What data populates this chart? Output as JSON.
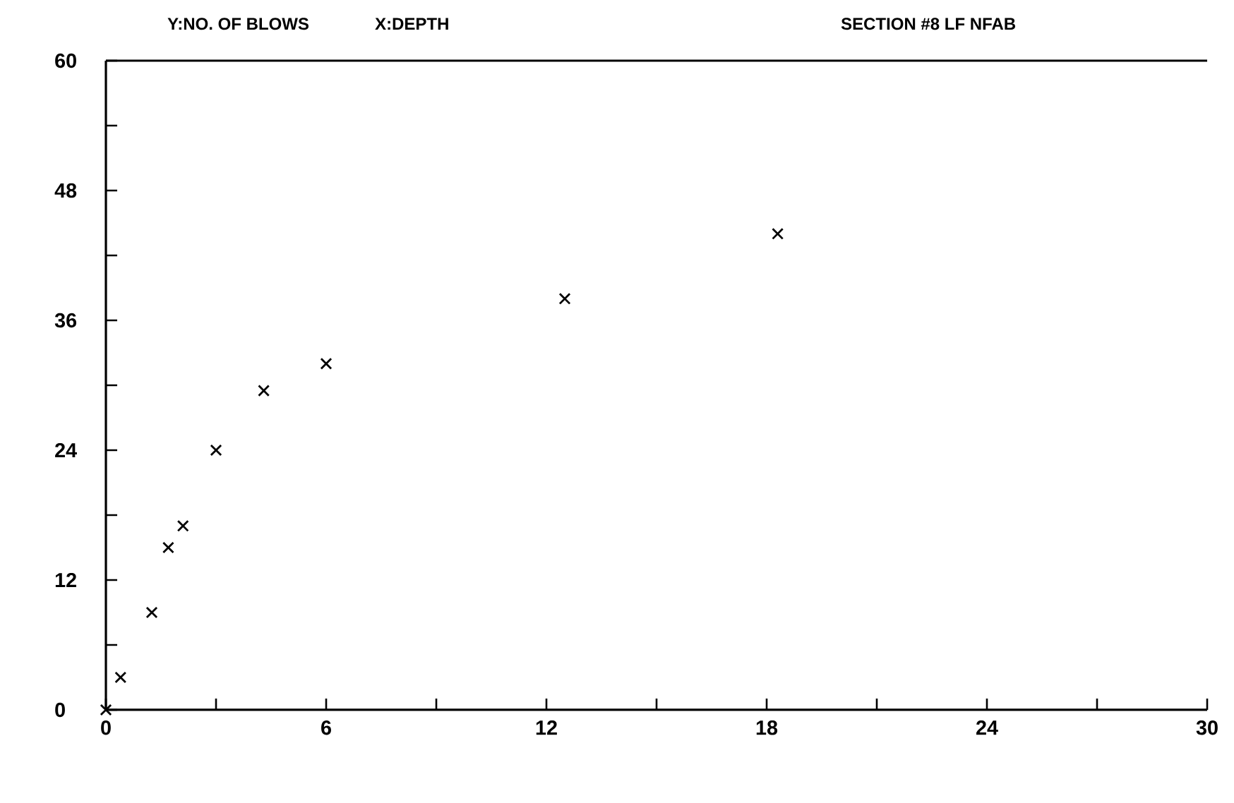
{
  "chart_data": {
    "type": "scatter",
    "title": "SECTION #8 LF NFAB",
    "xlabel": "X:DEPTH",
    "ylabel": "Y:NO. OF BLOWS",
    "x": [
      0,
      0.4,
      1.25,
      1.7,
      2.1,
      3,
      4.3,
      6,
      12.5,
      18.3
    ],
    "series": [
      {
        "color": "#000000",
        "values": [
          0,
          3,
          9,
          15,
          17,
          24,
          29.5,
          32,
          38,
          44
        ]
      }
    ],
    "marker": "cross",
    "xlim": [
      0,
      30
    ],
    "ylim": [
      0,
      60
    ],
    "xticks": [
      0,
      {
        "value": 3,
        "label": null
      },
      6,
      {
        "value": 9,
        "label": null
      },
      12,
      {
        "value": 15,
        "label": null
      },
      18,
      {
        "value": 21,
        "label": null
      },
      24,
      {
        "value": 27,
        "label": null
      },
      30
    ],
    "yticks": [
      0,
      {
        "value": 6,
        "label": null
      },
      12,
      {
        "value": 18,
        "label": null
      },
      24,
      {
        "value": 30,
        "label": null
      },
      36,
      {
        "value": 42,
        "label": null
      },
      48,
      {
        "value": 54,
        "label": null
      },
      60
    ],
    "line_style": "none"
  }
}
